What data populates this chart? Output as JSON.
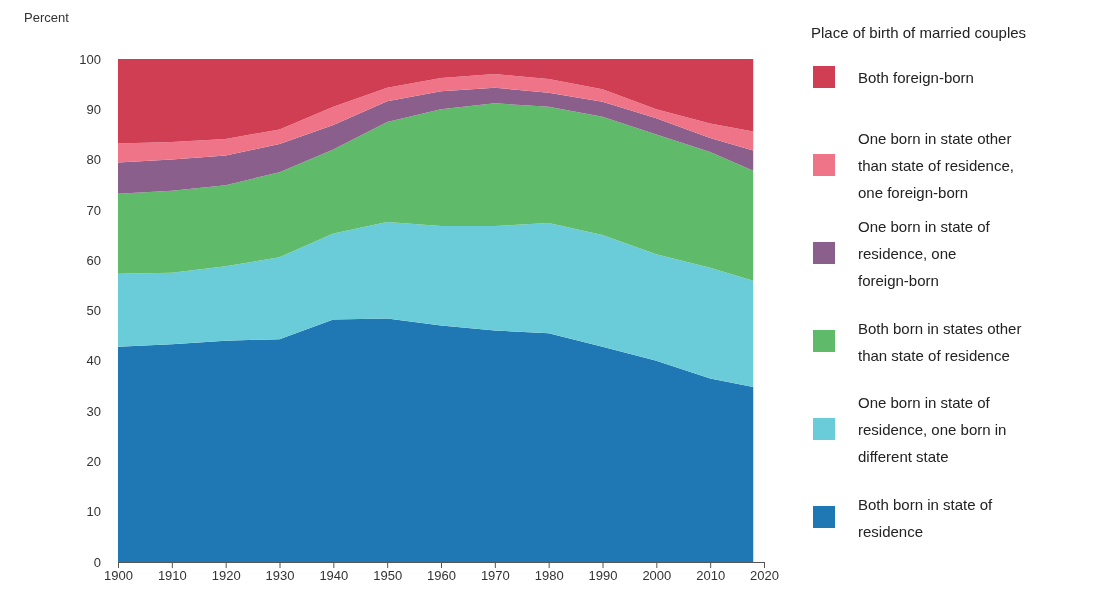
{
  "chart_data": {
    "type": "area",
    "stacked": true,
    "ylabel": "Percent",
    "legend_title": "Place of birth of married couples",
    "legend": "right",
    "x": [
      1900,
      1910,
      1920,
      1930,
      1940,
      1950,
      1960,
      1970,
      1980,
      1990,
      2000,
      2010,
      2018
    ],
    "xlim": [
      1900,
      2020
    ],
    "xticks": [
      1900,
      1910,
      1920,
      1930,
      1940,
      1950,
      1960,
      1970,
      1980,
      1990,
      2000,
      2010,
      2020
    ],
    "ylim": [
      0,
      100
    ],
    "yticks": [
      0,
      10,
      20,
      30,
      40,
      50,
      60,
      70,
      80,
      90,
      100
    ],
    "series": [
      {
        "name": "Both born in state of residence",
        "color": "#1f77b4",
        "values": [
          42.8,
          43.3,
          44.0,
          44.3,
          48.2,
          48.4,
          47.0,
          46.0,
          45.5,
          42.8,
          40.0,
          36.5,
          34.8
        ]
      },
      {
        "name": "One born in state of residence, one born in different state",
        "color": "#6bccd9",
        "values": [
          14.5,
          14.2,
          14.8,
          16.3,
          17.1,
          19.2,
          19.8,
          20.8,
          21.9,
          22.2,
          21.2,
          22.0,
          21.1
        ]
      },
      {
        "name": "Both born in states other than state of residence",
        "color": "#5fba69",
        "values": [
          15.9,
          16.3,
          16.1,
          16.9,
          16.7,
          19.9,
          23.2,
          24.4,
          23.1,
          23.5,
          23.8,
          23.0,
          21.9
        ]
      },
      {
        "name": "One born in state of residence, one foreign-born",
        "color": "#8b5f8c",
        "values": [
          6.2,
          6.2,
          5.9,
          5.6,
          4.9,
          4.1,
          3.6,
          3.1,
          2.8,
          3.0,
          3.2,
          2.8,
          4.0
        ]
      },
      {
        "name": "One born in state other than state of residence, one foreign-born",
        "color": "#f07488",
        "values": [
          3.8,
          3.5,
          3.3,
          2.9,
          3.6,
          2.7,
          2.6,
          2.7,
          2.7,
          2.5,
          1.8,
          2.9,
          3.8
        ]
      },
      {
        "name": "Both foreign-born",
        "color": "#cf3e53",
        "values": [
          16.8,
          16.5,
          15.9,
          14.0,
          9.5,
          5.7,
          3.8,
          3.0,
          4.0,
          6.0,
          10.0,
          12.8,
          14.4
        ]
      }
    ]
  }
}
